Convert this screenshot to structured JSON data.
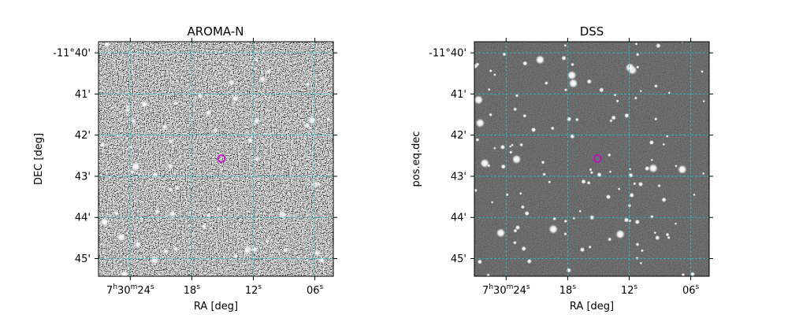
{
  "chart_data": [
    {
      "type": "image",
      "title": "AROMA-N",
      "xlabel": "RA [deg]",
      "ylabel": "DEC [deg]",
      "x_ticks": [
        {
          "main": "7",
          "sup1": "h",
          "mid": "30",
          "sup2": "m",
          "end": "24",
          "sup3": "s",
          "value": 24
        },
        {
          "main": "18",
          "sup3": "s",
          "value": 18
        },
        {
          "main": "12",
          "sup3": "s",
          "value": 12
        },
        {
          "main": "06",
          "sup3": "s",
          "value": 6
        }
      ],
      "y_ticks": [
        {
          "label": "-11°40'",
          "value": 40
        },
        {
          "label": "41'",
          "value": 41
        },
        {
          "label": "42'",
          "value": 42
        },
        {
          "label": "43'",
          "value": 43
        },
        {
          "label": "44'",
          "value": 44
        },
        {
          "label": "45'",
          "value": 45
        }
      ],
      "x_range": [
        27.1,
        4.2
      ],
      "y_range": [
        39.73,
        45.43
      ],
      "grid": true,
      "grid_color": "#20c4c4",
      "background": "noisy",
      "marker": {
        "ra": 15.1,
        "dec": 42.57,
        "color": "#d400d4"
      }
    },
    {
      "type": "image",
      "title": "DSS",
      "xlabel": "RA [deg]",
      "ylabel": "pos.eq.dec",
      "x_ticks": [
        {
          "main": "7",
          "sup1": "h",
          "mid": "30",
          "sup2": "m",
          "end": "24",
          "sup3": "s",
          "value": 24
        },
        {
          "main": "18",
          "sup3": "s",
          "value": 18
        },
        {
          "main": "12",
          "sup3": "s",
          "value": 12
        },
        {
          "main": "06",
          "sup3": "s",
          "value": 6
        }
      ],
      "y_ticks": [
        {
          "label": "-11°40'",
          "value": 40
        },
        {
          "label": "41'",
          "value": 41
        },
        {
          "label": "42'",
          "value": 42
        },
        {
          "label": "43'",
          "value": 43
        },
        {
          "label": "44'",
          "value": 44
        },
        {
          "label": "45'",
          "value": 45
        }
      ],
      "x_range": [
        27.1,
        4.2
      ],
      "y_range": [
        39.73,
        45.43
      ],
      "grid": true,
      "grid_color": "#20c4c4",
      "background": "dark",
      "marker": {
        "ra": 15.1,
        "dec": 42.57,
        "color": "#d400d4"
      }
    }
  ]
}
